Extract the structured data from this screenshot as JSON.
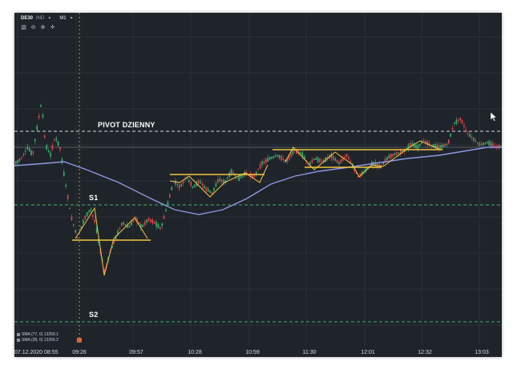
{
  "toolbar": {
    "symbol": "DE30",
    "symbol_sub": "IND",
    "timeframe": "M1",
    "tools": [
      "chart-type-icon",
      "zoom-out-icon",
      "zoom-in-icon",
      "crosshair-icon"
    ]
  },
  "labels": {
    "pivot": "PIVOT DZIENNY",
    "s1": "S1",
    "s2": "S2"
  },
  "indicators": [
    "SMA (77, 0) 13259.1",
    "SMA (28, 0) 13256.2"
  ],
  "x_axis": {
    "start_date": "07.12.2020 08:55",
    "ticks": [
      "09:26",
      "09:57",
      "10:28",
      "10:59",
      "11:30",
      "12:01",
      "12:32",
      "13:03"
    ]
  },
  "colors": {
    "background": "#1e2429",
    "candle_up": "#3cb371",
    "candle_down": "#e0454d",
    "sma": "#8f96e6",
    "level_line": "#d7dde2",
    "support_line": "#3cb371",
    "trend_line": "#f3c440",
    "crosshair": "#c98b2e"
  }
}
